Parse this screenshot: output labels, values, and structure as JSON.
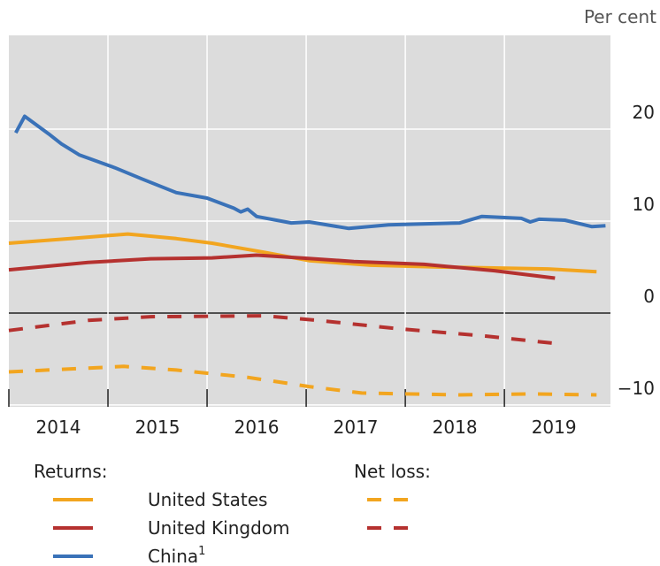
{
  "chart_data": {
    "type": "line",
    "y_unit_label": "Per cent",
    "xlim": [
      2014,
      2020.07
    ],
    "xticks": [
      2014,
      2015,
      2016,
      2017,
      2018,
      2019
    ],
    "ylim": [
      -10.2,
      30.2
    ],
    "yticks": [
      {
        "value": -10,
        "label": "−10"
      },
      0,
      10,
      20
    ],
    "grid": true,
    "legend_titles": [
      "Returns:",
      "Net loss:"
    ],
    "series": [
      {
        "name": "United States",
        "color": "#f2a51f",
        "style": "solid",
        "x": [
          2014.0,
          2014.62,
          2015.2,
          2015.69,
          2016.05,
          2016.58,
          2017.03,
          2017.65,
          2018.37,
          2018.9,
          2019.44,
          2019.93
        ],
        "values": [
          7.6,
          8.1,
          8.6,
          8.1,
          7.6,
          6.6,
          5.7,
          5.2,
          5.0,
          4.9,
          4.8,
          4.5
        ]
      },
      {
        "name": "United Kingdom",
        "color": "#b5312f",
        "style": "solid",
        "x": [
          2014.0,
          2014.8,
          2015.43,
          2016.05,
          2016.5,
          2016.94,
          2017.48,
          2018.19,
          2018.9,
          2019.51
        ],
        "values": [
          4.7,
          5.5,
          5.9,
          6.0,
          6.3,
          6.0,
          5.6,
          5.3,
          4.6,
          3.8
        ]
      },
      {
        "name": "China",
        "footnote": "1",
        "color": "#3a72b8",
        "style": "solid",
        "x": [
          2014.07,
          2014.16,
          2014.4,
          2014.53,
          2014.71,
          2015.07,
          2015.34,
          2015.69,
          2016.0,
          2016.27,
          2016.34,
          2016.41,
          2016.5,
          2016.85,
          2017.03,
          2017.43,
          2017.83,
          2018.55,
          2018.77,
          2019.17,
          2019.26,
          2019.35,
          2019.61,
          2019.88,
          2020.02
        ],
        "values": [
          19.6,
          21.4,
          19.5,
          18.4,
          17.2,
          15.8,
          14.6,
          13.1,
          12.5,
          11.4,
          11.0,
          11.3,
          10.5,
          9.8,
          9.9,
          9.2,
          9.6,
          9.8,
          10.5,
          10.3,
          9.9,
          10.2,
          10.1,
          9.4,
          9.5
        ]
      },
      {
        "color": "#f2a51f",
        "style": "dashed",
        "x": [
          2014.0,
          2015.16,
          2015.69,
          2016.41,
          2017.03,
          2017.56,
          2018.55,
          2019.26,
          2019.93
        ],
        "values": [
          -6.4,
          -5.8,
          -6.2,
          -7.0,
          -8.0,
          -8.7,
          -8.9,
          -8.8,
          -8.9
        ]
      },
      {
        "color": "#b5312f",
        "style": "dashed",
        "x": [
          2014.0,
          2014.8,
          2015.43,
          2016.58,
          2017.12,
          2017.92,
          2018.81,
          2019.51
        ],
        "values": [
          -1.9,
          -0.8,
          -0.4,
          -0.3,
          -0.8,
          -1.7,
          -2.5,
          -3.3
        ]
      }
    ]
  }
}
